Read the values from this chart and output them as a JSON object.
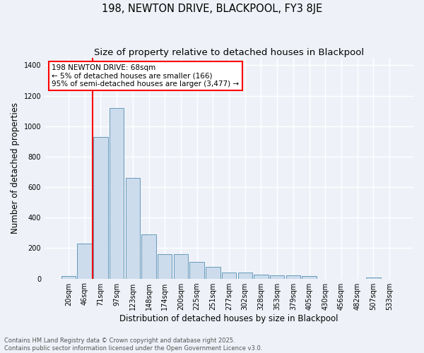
{
  "title": "198, NEWTON DRIVE, BLACKPOOL, FY3 8JE",
  "subtitle": "Size of property relative to detached houses in Blackpool",
  "xlabel": "Distribution of detached houses by size in Blackpool",
  "ylabel": "Number of detached properties",
  "categories": [
    "20sqm",
    "46sqm",
    "71sqm",
    "97sqm",
    "123sqm",
    "148sqm",
    "174sqm",
    "200sqm",
    "225sqm",
    "251sqm",
    "277sqm",
    "302sqm",
    "328sqm",
    "353sqm",
    "379sqm",
    "405sqm",
    "430sqm",
    "456sqm",
    "482sqm",
    "507sqm",
    "533sqm"
  ],
  "values": [
    15,
    230,
    930,
    1120,
    660,
    290,
    160,
    160,
    110,
    75,
    42,
    40,
    25,
    20,
    22,
    15,
    0,
    0,
    0,
    8,
    0
  ],
  "bar_color": "#ccdcec",
  "bar_edgecolor": "#6699bb",
  "background_color": "#eef2f8",
  "grid_color": "#ffffff",
  "vline_color": "red",
  "vline_x": 1.5,
  "annotation_text": "198 NEWTON DRIVE: 68sqm\n← 5% of detached houses are smaller (166)\n95% of semi-detached houses are larger (3,477) →",
  "annotation_box_edgecolor": "red",
  "annotation_fontsize": 7.5,
  "title_fontsize": 10.5,
  "subtitle_fontsize": 9.5,
  "ylabel_fontsize": 8.5,
  "xlabel_fontsize": 8.5,
  "tick_fontsize": 7,
  "footer_text": "Contains HM Land Registry data © Crown copyright and database right 2025.\nContains public sector information licensed under the Open Government Licence v3.0.",
  "footer_fontsize": 6,
  "ylim": [
    0,
    1450
  ],
  "yticks": [
    0,
    200,
    400,
    600,
    800,
    1000,
    1200,
    1400
  ]
}
